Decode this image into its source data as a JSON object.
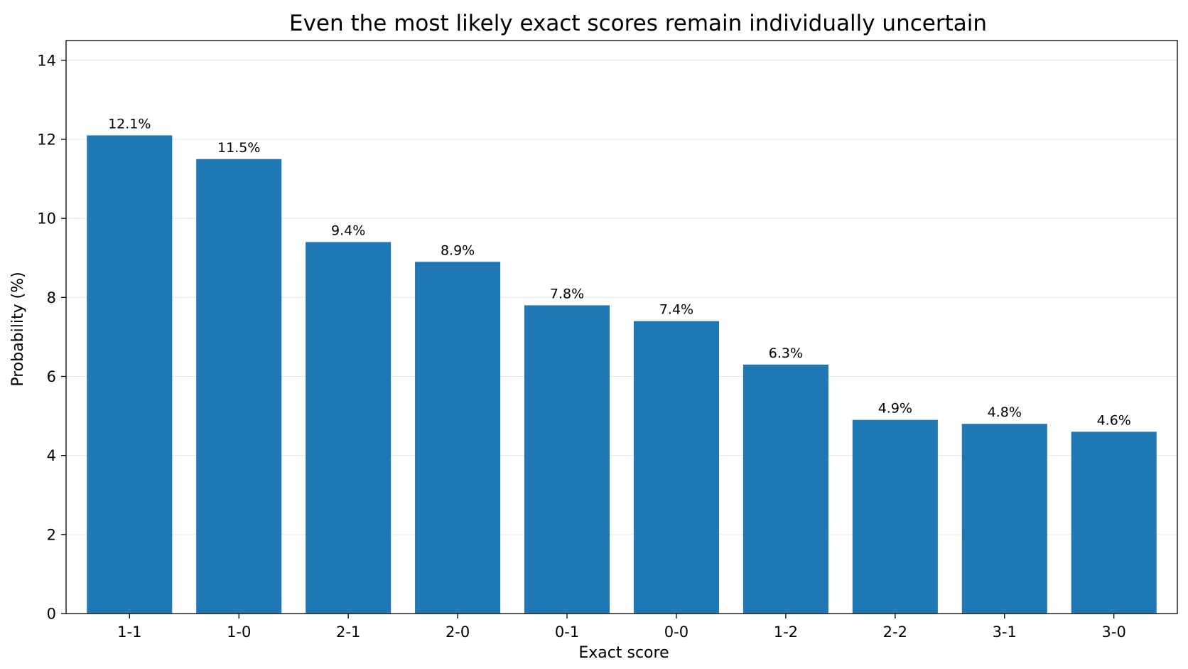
{
  "chart_data": {
    "type": "bar",
    "title": "Even the most likely exact scores remain individually uncertain",
    "xlabel": "Exact score",
    "ylabel": "Probability (%)",
    "categories": [
      "1-1",
      "1-0",
      "2-1",
      "2-0",
      "0-1",
      "0-0",
      "1-2",
      "2-2",
      "3-1",
      "3-0"
    ],
    "values": [
      12.1,
      11.5,
      9.4,
      8.9,
      7.8,
      7.4,
      6.3,
      4.9,
      4.8,
      4.6
    ],
    "data_labels": [
      "12.1%",
      "11.5%",
      "9.4%",
      "8.9%",
      "7.8%",
      "7.4%",
      "6.3%",
      "4.9%",
      "4.8%",
      "4.6%"
    ],
    "ylim": [
      0,
      14.5
    ],
    "yticks": [
      0,
      2,
      4,
      6,
      8,
      10,
      12,
      14
    ],
    "grid": "horizontal",
    "bar_color": "#1f77b4"
  }
}
